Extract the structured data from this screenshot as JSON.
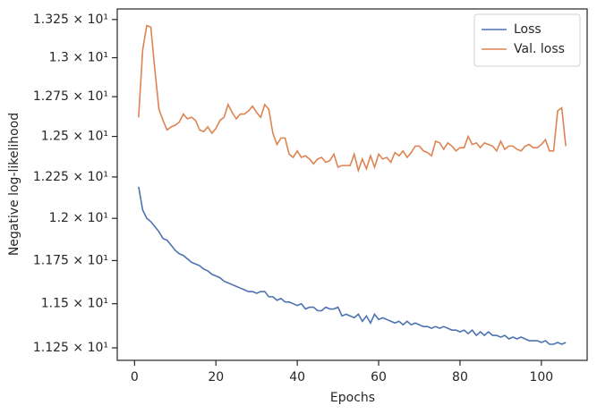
{
  "chart_data": {
    "type": "line",
    "xlabel": "Epochs",
    "ylabel": "Negative log-likelihood",
    "yscale": "log",
    "grid": false,
    "legend": "upper right",
    "xlim": [
      -4.25,
      111.25
    ],
    "xticks": [
      0,
      20,
      40,
      60,
      80,
      100
    ],
    "ylim": [
      11.18,
      13.32
    ],
    "yticks": [
      {
        "value": 11.25,
        "label": "1.125 × 10¹"
      },
      {
        "value": 11.5,
        "label": "1.15 × 10¹"
      },
      {
        "value": 11.75,
        "label": "1.175 × 10¹"
      },
      {
        "value": 12,
        "label": "1.2 × 10¹"
      },
      {
        "value": 12.25,
        "label": "1.225 × 10¹"
      },
      {
        "value": 12.5,
        "label": "1.25 × 10¹"
      },
      {
        "value": 12.75,
        "label": "1.275 × 10¹"
      },
      {
        "value": 13,
        "label": "1.3 × 10¹"
      },
      {
        "value": 13.25,
        "label": "1.325 × 10¹"
      }
    ],
    "x": [
      1,
      2,
      3,
      4,
      5,
      6,
      7,
      8,
      9,
      10,
      11,
      12,
      13,
      14,
      15,
      16,
      17,
      18,
      19,
      20,
      21,
      22,
      23,
      24,
      25,
      26,
      27,
      28,
      29,
      30,
      31,
      32,
      33,
      34,
      35,
      36,
      37,
      38,
      39,
      40,
      41,
      42,
      43,
      44,
      45,
      46,
      47,
      48,
      49,
      50,
      51,
      52,
      53,
      54,
      55,
      56,
      57,
      58,
      59,
      60,
      61,
      62,
      63,
      64,
      65,
      66,
      67,
      68,
      69,
      70,
      71,
      72,
      73,
      74,
      75,
      76,
      77,
      78,
      79,
      80,
      81,
      82,
      83,
      84,
      85,
      86,
      87,
      88,
      89,
      90,
      91,
      92,
      93,
      94,
      95,
      96,
      97,
      98,
      99,
      100,
      101,
      102,
      103,
      104,
      105,
      106
    ],
    "series": [
      {
        "name": "Loss",
        "color": "#4c72b0",
        "values": [
          12.19,
          12.05,
          12.0,
          11.98,
          11.95,
          11.92,
          11.88,
          11.87,
          11.84,
          11.81,
          11.79,
          11.78,
          11.76,
          11.74,
          11.73,
          11.72,
          11.7,
          11.69,
          11.67,
          11.66,
          11.65,
          11.63,
          11.62,
          11.61,
          11.6,
          11.59,
          11.58,
          11.57,
          11.57,
          11.56,
          11.57,
          11.57,
          11.54,
          11.54,
          11.52,
          11.53,
          11.51,
          11.51,
          11.5,
          11.49,
          11.5,
          11.47,
          11.48,
          11.48,
          11.46,
          11.46,
          11.48,
          11.47,
          11.47,
          11.48,
          11.43,
          11.44,
          11.43,
          11.42,
          11.44,
          11.4,
          11.43,
          11.39,
          11.44,
          11.41,
          11.42,
          11.41,
          11.4,
          11.39,
          11.4,
          11.38,
          11.4,
          11.38,
          11.39,
          11.38,
          11.37,
          11.37,
          11.36,
          11.37,
          11.36,
          11.37,
          11.36,
          11.35,
          11.35,
          11.34,
          11.35,
          11.33,
          11.35,
          11.32,
          11.34,
          11.32,
          11.34,
          11.32,
          11.32,
          11.31,
          11.32,
          11.3,
          11.31,
          11.3,
          11.31,
          11.3,
          11.29,
          11.29,
          11.29,
          11.28,
          11.29,
          11.27,
          11.27,
          11.28,
          11.27,
          11.28
        ]
      },
      {
        "name": "Val. loss",
        "color": "#dd8452",
        "values": [
          12.62,
          13.05,
          13.21,
          13.2,
          12.92,
          12.67,
          12.6,
          12.54,
          12.56,
          12.57,
          12.59,
          12.64,
          12.61,
          12.62,
          12.6,
          12.54,
          12.53,
          12.56,
          12.52,
          12.55,
          12.6,
          12.62,
          12.7,
          12.65,
          12.61,
          12.64,
          12.64,
          12.66,
          12.69,
          12.65,
          12.62,
          12.7,
          12.67,
          12.52,
          12.45,
          12.49,
          12.49,
          12.39,
          12.37,
          12.41,
          12.37,
          12.38,
          12.36,
          12.33,
          12.36,
          12.37,
          12.34,
          12.35,
          12.39,
          12.31,
          12.32,
          12.32,
          12.32,
          12.39,
          12.29,
          12.36,
          12.3,
          12.38,
          12.31,
          12.39,
          12.36,
          12.37,
          12.34,
          12.4,
          12.38,
          12.41,
          12.37,
          12.4,
          12.44,
          12.44,
          12.41,
          12.4,
          12.38,
          12.47,
          12.46,
          12.42,
          12.46,
          12.44,
          12.41,
          12.43,
          12.43,
          12.5,
          12.45,
          12.46,
          12.43,
          12.46,
          12.45,
          12.44,
          12.41,
          12.47,
          12.42,
          12.44,
          12.44,
          12.42,
          12.41,
          12.44,
          12.45,
          12.43,
          12.43,
          12.45,
          12.48,
          12.41,
          12.41,
          12.66,
          12.68,
          12.44
        ]
      }
    ]
  }
}
